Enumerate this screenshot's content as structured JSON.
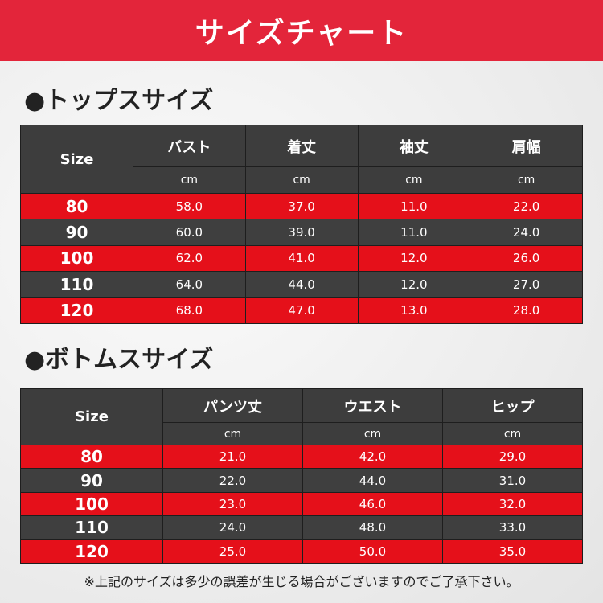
{
  "header": {
    "title": "サイズチャート"
  },
  "sections": [
    {
      "title": "●トップスサイズ",
      "table": {
        "size_label": "Size",
        "columns": [
          "バスト",
          "着丈",
          "袖丈",
          "肩幅"
        ],
        "units": [
          "cm",
          "cm",
          "cm",
          "cm"
        ],
        "rows": [
          [
            "80",
            "58.0",
            "37.0",
            "11.0",
            "22.0"
          ],
          [
            "90",
            "60.0",
            "39.0",
            "11.0",
            "24.0"
          ],
          [
            "100",
            "62.0",
            "41.0",
            "12.0",
            "26.0"
          ],
          [
            "110",
            "64.0",
            "44.0",
            "12.0",
            "27.0"
          ],
          [
            "120",
            "68.0",
            "47.0",
            "13.0",
            "28.0"
          ]
        ]
      }
    },
    {
      "title": "●ボトムスサイズ",
      "table": {
        "size_label": "Size",
        "columns": [
          "パンツ丈",
          "ウエスト",
          "ヒップ"
        ],
        "units": [
          "cm",
          "cm",
          "cm"
        ],
        "rows": [
          [
            "80",
            "21.0",
            "42.0",
            "29.0"
          ],
          [
            "90",
            "22.0",
            "44.0",
            "31.0"
          ],
          [
            "100",
            "23.0",
            "46.0",
            "32.0"
          ],
          [
            "110",
            "24.0",
            "48.0",
            "33.0"
          ],
          [
            "120",
            "25.0",
            "50.0",
            "35.0"
          ]
        ]
      }
    }
  ],
  "footnote": "※上記のサイズは多少の誤差が生じる場合がございますのでご了承下さい。"
}
